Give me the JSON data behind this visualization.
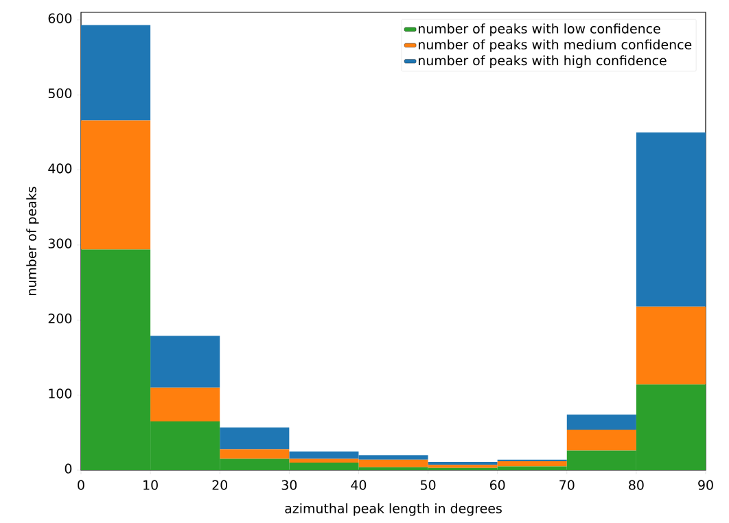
{
  "chart_data": {
    "type": "bar",
    "xlabel": "azimuthal peak length in degrees",
    "ylabel": "number of peaks",
    "x": [
      5,
      15,
      25,
      35,
      45,
      55,
      65,
      75,
      85
    ],
    "stacked": true,
    "series": [
      {
        "name": "number of peaks with low confidence",
        "color": "#2ca02c",
        "values": [
          294,
          65,
          15,
          10,
          4,
          3,
          5,
          26,
          114
        ]
      },
      {
        "name": "number of peaks with medium confidence",
        "color": "#ff7f0e",
        "values": [
          172,
          45,
          13,
          5,
          10,
          4,
          7,
          28,
          104
        ]
      },
      {
        "name": "number of peaks with high confidence",
        "color": "#1f77b4",
        "values": [
          127,
          69,
          29,
          10,
          6,
          4,
          2,
          20,
          232
        ]
      }
    ],
    "xlim": [
      0,
      90
    ],
    "ylim": [
      0,
      610
    ],
    "xticks": [
      0,
      10,
      20,
      30,
      40,
      50,
      60,
      70,
      80,
      90
    ],
    "yticks": [
      0,
      100,
      200,
      300,
      400,
      500,
      600
    ],
    "legend": "top right",
    "grid": false
  }
}
